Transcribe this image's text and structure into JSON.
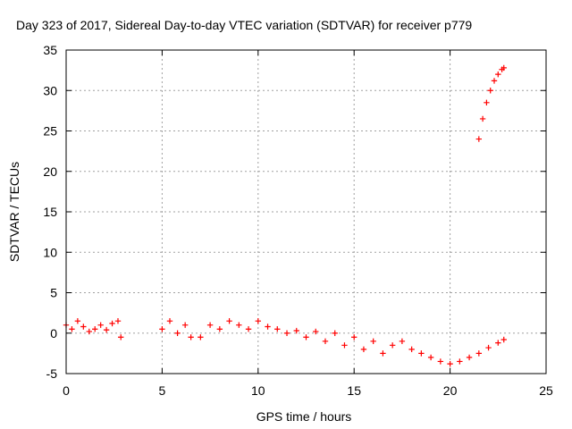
{
  "chart_data": {
    "type": "scatter",
    "title": "Day 323 of 2017, Sidereal Day-to-day VTEC variation (SDTVAR) for receiver p779",
    "xlabel": "GPS time / hours",
    "ylabel": "SDTVAR / TECUs",
    "xlim": [
      0,
      25
    ],
    "ylim": [
      -5,
      35
    ],
    "xticks": [
      0,
      5,
      10,
      15,
      20,
      25
    ],
    "yticks": [
      -5,
      0,
      5,
      10,
      15,
      20,
      25,
      30,
      35
    ],
    "grid": true,
    "marker": "plus",
    "marker_color": "#ff0000",
    "series": [
      {
        "name": "SDTVAR",
        "segments": [
          {
            "x": [
              0.0,
              0.3,
              0.6,
              0.9,
              1.2,
              1.5,
              1.8,
              2.1,
              2.4,
              2.7,
              2.85
            ],
            "y": [
              1.0,
              0.5,
              1.5,
              0.8,
              0.2,
              0.5,
              1.0,
              0.4,
              1.2,
              1.5,
              -0.5
            ]
          },
          {
            "x": [
              5.0,
              5.4,
              5.8,
              6.2,
              6.5
            ],
            "y": [
              0.5,
              1.5,
              0.0,
              1.0,
              -0.5
            ]
          },
          {
            "x": [
              7.0,
              7.5,
              8.0,
              8.5,
              9.0,
              9.5,
              10.0,
              10.5,
              11.0,
              11.5,
              12.0,
              12.5,
              13.0,
              13.5,
              14.0,
              14.5,
              15.0,
              15.5,
              16.0,
              16.5,
              17.0,
              17.5,
              18.0,
              18.5,
              19.0,
              19.5,
              20.0,
              20.5,
              21.0,
              21.5,
              22.0,
              22.5,
              22.8
            ],
            "y": [
              -0.5,
              1.0,
              0.5,
              1.5,
              1.0,
              0.5,
              1.5,
              0.8,
              0.5,
              0.0,
              0.3,
              -0.5,
              0.2,
              -1.0,
              0.0,
              -1.5,
              -0.5,
              -2.0,
              -1.0,
              -2.5,
              -1.5,
              -1.0,
              -2.0,
              -2.5,
              -3.0,
              -3.5,
              -3.8,
              -3.5,
              -3.0,
              -2.5,
              -1.8,
              -1.2,
              -0.8
            ]
          },
          {
            "x": [
              21.5,
              21.7,
              21.9,
              22.1,
              22.3,
              22.5,
              22.7,
              22.8
            ],
            "y": [
              24.0,
              26.5,
              28.5,
              30.0,
              31.2,
              32.0,
              32.6,
              32.8
            ]
          }
        ]
      }
    ]
  }
}
